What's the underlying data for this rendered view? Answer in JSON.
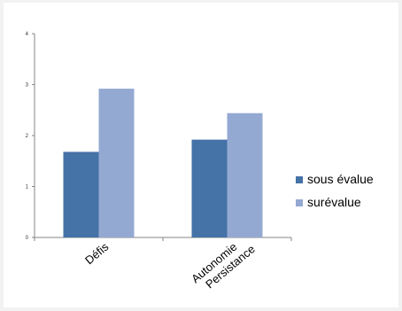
{
  "chart_data": {
    "type": "bar",
    "title": "",
    "xlabel": "",
    "ylabel": "",
    "categories": [
      [
        "Défis"
      ],
      [
        "Autonomie",
        "Persistance"
      ]
    ],
    "series": [
      {
        "name": "sous évalue",
        "color": "#4572a7",
        "values": [
          1.68,
          1.92
        ]
      },
      {
        "name": "surévalue",
        "color": "#94a9d2",
        "values": [
          2.92,
          2.44
        ]
      }
    ],
    "ylim": [
      0,
      4
    ],
    "yticks": [
      "0",
      "1",
      "2",
      "3",
      "4"
    ],
    "grid": false,
    "legend_position": "right"
  }
}
